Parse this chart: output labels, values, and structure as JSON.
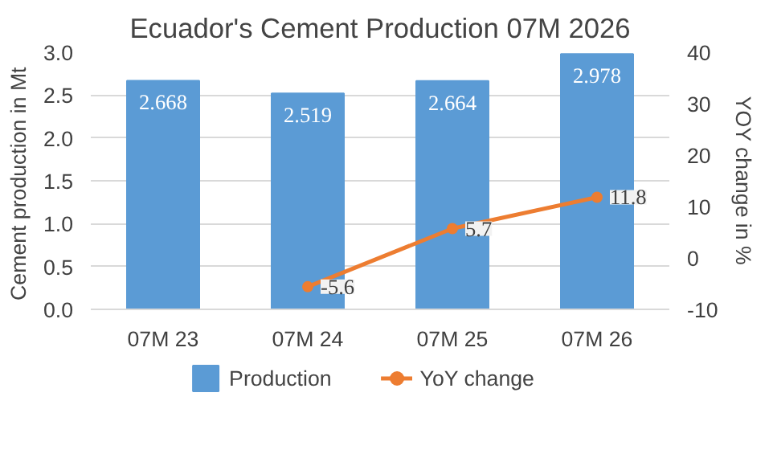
{
  "chart_data": {
    "type": "bar",
    "title": "Ecuador's Cement Production 07M 2026",
    "ylabel": "Cement production  in Mt",
    "y2label": "YOY change in %",
    "categories": [
      "07M 23",
      "07M 24",
      "07M 25",
      "07M 26"
    ],
    "series": [
      {
        "name": "Production",
        "color": "#5b9bd5",
        "values": [
          2.668,
          2.519,
          2.664,
          2.978
        ]
      },
      {
        "name": "YoY change",
        "type": "line",
        "axis": "y2",
        "color": "#ed7d31",
        "marker": "circle",
        "values": [
          null,
          -5.6,
          5.7,
          11.8
        ]
      }
    ],
    "ylim": [
      0,
      3
    ],
    "yticks": [
      {
        "value": 0,
        "label": "0.0"
      },
      {
        "value": 0.5,
        "label": "0.5"
      },
      {
        "value": 1,
        "label": "1.0"
      },
      {
        "value": 1.5,
        "label": "1.5"
      },
      {
        "value": 2,
        "label": "2.0"
      },
      {
        "value": 2.5,
        "label": "2.5"
      },
      {
        "value": 3,
        "label": "3.0"
      }
    ],
    "y2lim": [
      -10,
      40
    ],
    "y2ticks": [
      -10,
      0,
      10,
      20,
      30,
      40
    ],
    "grid": "y",
    "legend": "bottom",
    "data_labels": true
  }
}
